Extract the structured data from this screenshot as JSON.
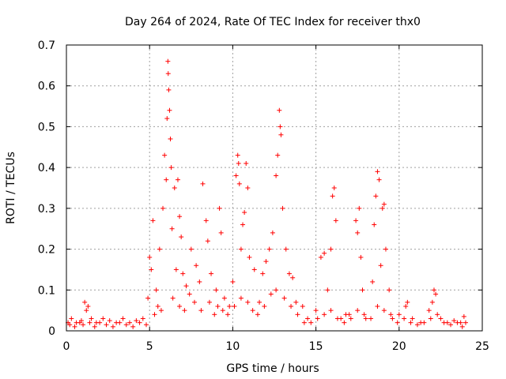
{
  "chart_data": {
    "type": "scatter",
    "title": "Day 264 of 2024, Rate Of TEC Index for receiver thx0",
    "xlabel": "GPS time / hours",
    "ylabel": "ROTI / TECUs",
    "xlim": [
      0,
      25
    ],
    "ylim": [
      0,
      0.7
    ],
    "xticks": [
      "0",
      "5",
      "10",
      "15",
      "20",
      "25"
    ],
    "yticks": [
      "0",
      "0.1",
      "0.2",
      "0.3",
      "0.4",
      "0.5",
      "0.6",
      "0.7"
    ],
    "grid": true,
    "marker": "+",
    "color": "#ff0000",
    "series": [
      {
        "values": [
          [
            0.1,
            0.02
          ],
          [
            0.3,
            0.03
          ],
          [
            0.6,
            0.02
          ],
          [
            0.9,
            0.025
          ],
          [
            1.1,
            0.07
          ],
          [
            1.2,
            0.05
          ],
          [
            1.3,
            0.06
          ],
          [
            1.5,
            0.03
          ],
          [
            1.8,
            0.02
          ],
          [
            2.2,
            0.03
          ],
          [
            2.6,
            0.025
          ],
          [
            3.0,
            0.02
          ],
          [
            3.4,
            0.03
          ],
          [
            3.8,
            0.02
          ],
          [
            4.2,
            0.025
          ],
          [
            4.6,
            0.03
          ],
          [
            4.9,
            0.08
          ],
          [
            5.0,
            0.18
          ],
          [
            5.1,
            0.15
          ],
          [
            5.2,
            0.27
          ],
          [
            5.4,
            0.1
          ],
          [
            5.6,
            0.2
          ],
          [
            5.8,
            0.3
          ],
          [
            5.9,
            0.43
          ],
          [
            6.0,
            0.37
          ],
          [
            6.05,
            0.52
          ],
          [
            6.1,
            0.66
          ],
          [
            6.12,
            0.63
          ],
          [
            6.15,
            0.59
          ],
          [
            6.2,
            0.54
          ],
          [
            6.25,
            0.47
          ],
          [
            6.3,
            0.4
          ],
          [
            6.35,
            0.25
          ],
          [
            6.5,
            0.35
          ],
          [
            6.6,
            0.15
          ],
          [
            6.7,
            0.37
          ],
          [
            6.8,
            0.28
          ],
          [
            6.9,
            0.23
          ],
          [
            7.0,
            0.14
          ],
          [
            7.2,
            0.11
          ],
          [
            7.5,
            0.2
          ],
          [
            7.8,
            0.16
          ],
          [
            8.0,
            0.12
          ],
          [
            8.2,
            0.36
          ],
          [
            8.4,
            0.27
          ],
          [
            8.5,
            0.22
          ],
          [
            8.7,
            0.14
          ],
          [
            9.0,
            0.1
          ],
          [
            9.2,
            0.3
          ],
          [
            9.3,
            0.24
          ],
          [
            9.5,
            0.08
          ],
          [
            9.8,
            0.06
          ],
          [
            10.0,
            0.12
          ],
          [
            10.2,
            0.38
          ],
          [
            10.3,
            0.43
          ],
          [
            10.35,
            0.41
          ],
          [
            10.4,
            0.36
          ],
          [
            10.5,
            0.2
          ],
          [
            10.6,
            0.26
          ],
          [
            10.7,
            0.29
          ],
          [
            10.8,
            0.41
          ],
          [
            10.9,
            0.35
          ],
          [
            11.0,
            0.18
          ],
          [
            11.3,
            0.15
          ],
          [
            11.6,
            0.07
          ],
          [
            11.8,
            0.14
          ],
          [
            12.0,
            0.17
          ],
          [
            12.2,
            0.2
          ],
          [
            12.4,
            0.24
          ],
          [
            12.6,
            0.38
          ],
          [
            12.7,
            0.43
          ],
          [
            12.8,
            0.54
          ],
          [
            12.85,
            0.5
          ],
          [
            12.9,
            0.48
          ],
          [
            13.0,
            0.3
          ],
          [
            13.2,
            0.2
          ],
          [
            13.4,
            0.14
          ],
          [
            13.6,
            0.13
          ],
          [
            13.8,
            0.07
          ],
          [
            14.2,
            0.06
          ],
          [
            14.5,
            0.03
          ],
          [
            15.0,
            0.05
          ],
          [
            15.3,
            0.18
          ],
          [
            15.5,
            0.19
          ],
          [
            15.7,
            0.1
          ],
          [
            15.9,
            0.2
          ],
          [
            16.0,
            0.33
          ],
          [
            16.1,
            0.35
          ],
          [
            16.2,
            0.27
          ],
          [
            16.5,
            0.03
          ],
          [
            16.8,
            0.04
          ],
          [
            17.0,
            0.04
          ],
          [
            17.4,
            0.27
          ],
          [
            17.5,
            0.24
          ],
          [
            17.6,
            0.3
          ],
          [
            17.7,
            0.18
          ],
          [
            17.8,
            0.1
          ],
          [
            18.0,
            0.03
          ],
          [
            18.4,
            0.12
          ],
          [
            18.5,
            0.26
          ],
          [
            18.6,
            0.33
          ],
          [
            18.7,
            0.39
          ],
          [
            18.8,
            0.37
          ],
          [
            18.9,
            0.16
          ],
          [
            19.0,
            0.3
          ],
          [
            19.1,
            0.31
          ],
          [
            19.2,
            0.2
          ],
          [
            19.4,
            0.1
          ],
          [
            19.6,
            0.03
          ],
          [
            20.0,
            0.04
          ],
          [
            20.4,
            0.06
          ],
          [
            20.5,
            0.07
          ],
          [
            20.8,
            0.03
          ],
          [
            21.3,
            0.02
          ],
          [
            21.8,
            0.05
          ],
          [
            22.0,
            0.07
          ],
          [
            22.1,
            0.1
          ],
          [
            22.2,
            0.09
          ],
          [
            22.5,
            0.03
          ],
          [
            22.9,
            0.02
          ],
          [
            23.3,
            0.025
          ],
          [
            23.7,
            0.02
          ],
          [
            23.9,
            0.035
          ],
          [
            24.0,
            0.02
          ],
          [
            0.2,
            0.015
          ],
          [
            0.5,
            0.01
          ],
          [
            0.8,
            0.02
          ],
          [
            1.0,
            0.015
          ],
          [
            1.4,
            0.02
          ],
          [
            1.7,
            0.01
          ],
          [
            2.0,
            0.02
          ],
          [
            2.4,
            0.015
          ],
          [
            2.8,
            0.01
          ],
          [
            3.2,
            0.02
          ],
          [
            3.6,
            0.015
          ],
          [
            4.0,
            0.01
          ],
          [
            4.4,
            0.02
          ],
          [
            4.8,
            0.015
          ],
          [
            5.3,
            0.04
          ],
          [
            5.5,
            0.06
          ],
          [
            5.7,
            0.05
          ],
          [
            6.4,
            0.08
          ],
          [
            6.8,
            0.06
          ],
          [
            7.1,
            0.05
          ],
          [
            7.4,
            0.09
          ],
          [
            7.7,
            0.07
          ],
          [
            8.1,
            0.05
          ],
          [
            8.6,
            0.07
          ],
          [
            8.9,
            0.04
          ],
          [
            9.1,
            0.06
          ],
          [
            9.4,
            0.05
          ],
          [
            9.7,
            0.04
          ],
          [
            10.1,
            0.06
          ],
          [
            10.5,
            0.08
          ],
          [
            10.9,
            0.07
          ],
          [
            11.2,
            0.05
          ],
          [
            11.5,
            0.04
          ],
          [
            11.9,
            0.06
          ],
          [
            12.3,
            0.09
          ],
          [
            12.6,
            0.1
          ],
          [
            13.1,
            0.08
          ],
          [
            13.5,
            0.06
          ],
          [
            13.9,
            0.04
          ],
          [
            14.3,
            0.02
          ],
          [
            14.7,
            0.02
          ],
          [
            15.1,
            0.03
          ],
          [
            15.5,
            0.04
          ],
          [
            15.9,
            0.05
          ],
          [
            16.3,
            0.03
          ],
          [
            16.7,
            0.02
          ],
          [
            17.1,
            0.03
          ],
          [
            17.5,
            0.05
          ],
          [
            17.9,
            0.04
          ],
          [
            18.3,
            0.03
          ],
          [
            18.7,
            0.06
          ],
          [
            19.1,
            0.05
          ],
          [
            19.5,
            0.04
          ],
          [
            19.9,
            0.02
          ],
          [
            20.3,
            0.03
          ],
          [
            20.7,
            0.02
          ],
          [
            21.1,
            0.015
          ],
          [
            21.5,
            0.02
          ],
          [
            21.9,
            0.03
          ],
          [
            22.3,
            0.04
          ],
          [
            22.7,
            0.02
          ],
          [
            23.1,
            0.015
          ],
          [
            23.5,
            0.02
          ],
          [
            23.8,
            0.01
          ]
        ]
      }
    ]
  }
}
